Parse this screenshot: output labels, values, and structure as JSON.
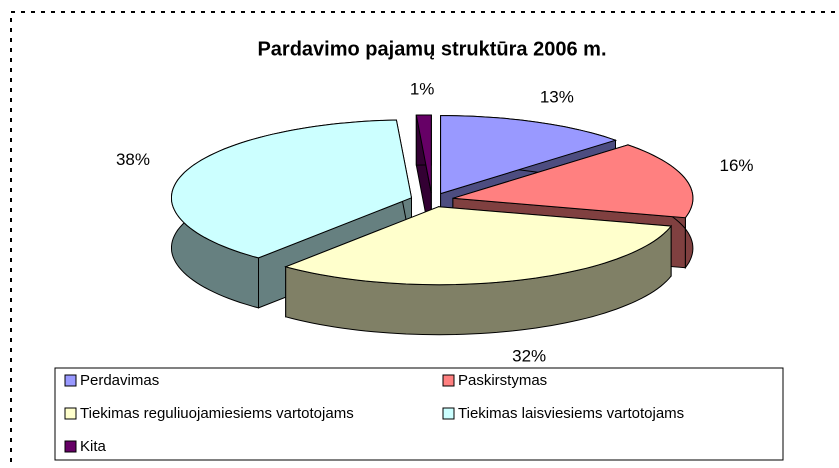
{
  "chart_data": {
    "type": "pie3d",
    "title": "Pardavimo pajamų struktūra 2006 m.",
    "categories": [
      "Perdavimas",
      "Paskirstymas",
      "Tiekimas reguliuojamiesiems vartotojams",
      "Tiekimas laisviesiems vartotojams",
      "Kita"
    ],
    "values": [
      13,
      16,
      32,
      38,
      1
    ],
    "value_labels": [
      "13%",
      "16%",
      "32%",
      "38%",
      "1%"
    ],
    "colors": [
      "#9999ff",
      "#ff8080",
      "#ffffcc",
      "#ccffff",
      "#660066"
    ],
    "legend": "bottom"
  }
}
